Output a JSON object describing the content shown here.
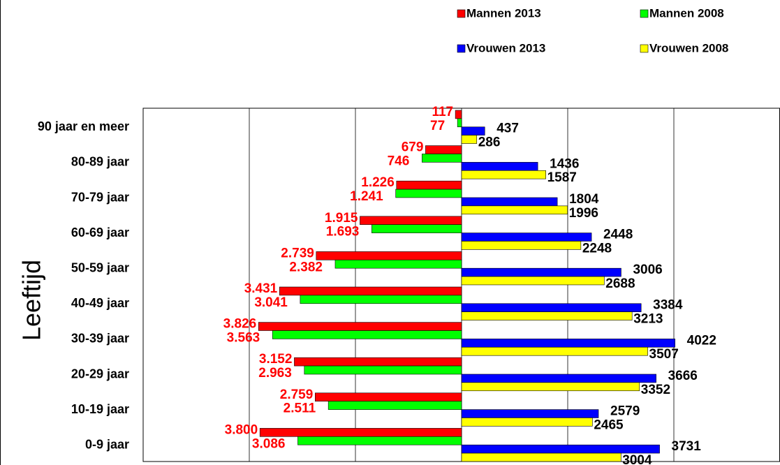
{
  "chart_data": {
    "type": "bar",
    "orientation": "horizontal",
    "y_label": "Leeftijd",
    "categories": [
      "90 jaar en meer",
      "80-89 jaar",
      "70-79 jaar",
      "60-69 jaar",
      "50-59 jaar",
      "40-49 jaar",
      "30-39 jaar",
      "20-29 jaar",
      "10-19 jaar",
      "0-9 jaar"
    ],
    "series": [
      {
        "name": "Mannen 2013",
        "color": "#ff0000",
        "label_color": "#ff0000",
        "values": [
          -117,
          -679,
          -1226,
          -1915,
          -2739,
          -3431,
          -3826,
          -3152,
          -2759,
          -3800
        ],
        "value_labels": [
          "117",
          "679",
          "1.226",
          "1.915",
          "2.739",
          "3.431",
          "3.826",
          "3.152",
          "2.759",
          "3.800"
        ]
      },
      {
        "name": "Mannen 2008",
        "color": "#00ff00",
        "label_color": "#ff0000",
        "values": [
          -77,
          -746,
          -1241,
          -1693,
          -2382,
          -3041,
          -3563,
          -2963,
          -2511,
          -3086
        ],
        "value_labels": [
          "77",
          "746",
          "1.241",
          "1.693",
          "2.382",
          "3.041",
          "3.563",
          "2.963",
          "2.511",
          "3.086"
        ]
      },
      {
        "name": "Vrouwen 2013",
        "color": "#0000ff",
        "label_color": "#000000",
        "values": [
          437,
          1436,
          1804,
          2448,
          3006,
          3384,
          4022,
          3666,
          2579,
          3731
        ]
      },
      {
        "name": "Vrouwen 2008",
        "color": "#ffff00",
        "label_color": "#000000",
        "values": [
          286,
          1587,
          1996,
          2248,
          2688,
          3213,
          3507,
          3352,
          2465,
          3004
        ]
      }
    ],
    "xlim": [
      -6000,
      6000
    ],
    "xticks": [
      -6000,
      -4000,
      -2000,
      0,
      2000,
      4000,
      6000
    ],
    "grid": true
  }
}
